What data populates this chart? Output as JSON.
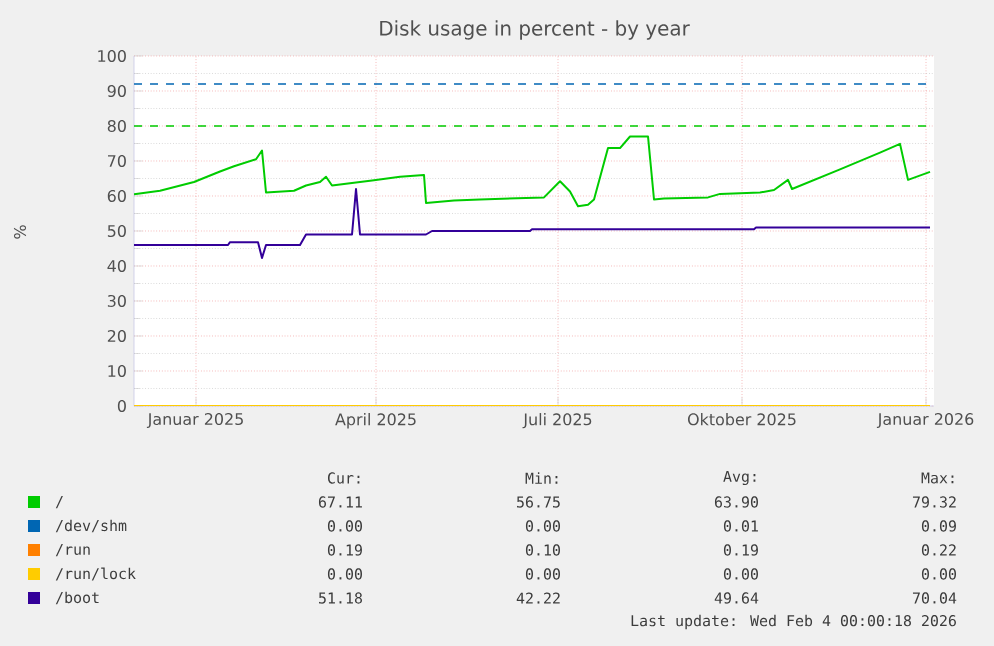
{
  "chart_data": {
    "type": "line",
    "title": "Disk usage in percent - by year",
    "ylabel": "%",
    "xlim": [
      "2024-12-01",
      "2026-01-05"
    ],
    "xticks": [
      {
        "value": "2025-01-01",
        "label": "Januar 2025"
      },
      {
        "value": "2025-04-01",
        "label": "April 2025"
      },
      {
        "value": "2025-07-01",
        "label": "Juli 2025"
      },
      {
        "value": "2025-10-01",
        "label": "Oktober 2025"
      },
      {
        "value": "2026-01-01",
        "label": "Januar 2026"
      }
    ],
    "ylim": [
      0,
      100
    ],
    "yticks": [
      0,
      10,
      20,
      30,
      40,
      50,
      60,
      70,
      80,
      90,
      100
    ],
    "grid": true,
    "legend": "bottom",
    "marker": "none",
    "line_style": "solid",
    "ref_lines": [
      {
        "axis": "y",
        "value": 92,
        "color": "#0066b3",
        "line_style": "dashed"
      },
      {
        "axis": "y",
        "value": 80,
        "color": "#00cc00",
        "line_style": "dashed"
      }
    ],
    "series": [
      {
        "name": "/",
        "color": "#00cc00",
        "x": [
          "2024-12-01",
          "2024-12-14",
          "2024-12-31",
          "2025-01-13",
          "2025-01-20",
          "2025-01-31",
          "2025-02-03",
          "2025-02-05",
          "2025-02-19",
          "2025-02-25",
          "2025-03-04",
          "2025-03-07",
          "2025-03-10",
          "2025-03-17",
          "2025-03-31",
          "2025-04-13",
          "2025-04-25",
          "2025-04-26",
          "2025-05-10",
          "2025-05-23",
          "2025-06-24",
          "2025-07-02",
          "2025-07-07",
          "2025-07-11",
          "2025-07-16",
          "2025-07-19",
          "2025-07-26",
          "2025-08-01",
          "2025-08-06",
          "2025-08-15",
          "2025-08-18",
          "2025-08-23",
          "2025-09-14",
          "2025-09-20",
          "2025-10-10",
          "2025-10-17",
          "2025-10-24",
          "2025-10-26",
          "2025-11-19",
          "2025-12-09",
          "2025-12-19",
          "2025-12-23",
          "2026-01-03"
        ],
        "values": [
          60.5,
          61.5,
          64,
          67,
          68.5,
          70.5,
          73,
          61,
          61.5,
          63,
          64,
          65.5,
          63,
          63.5,
          64.5,
          65.5,
          66,
          58,
          58.7,
          59,
          59.6,
          64.2,
          61.3,
          57.1,
          57.5,
          59,
          73.7,
          73.7,
          77,
          77,
          59,
          59.3,
          59.6,
          60.6,
          61,
          61.7,
          64.6,
          62,
          67.6,
          72.4,
          74.9,
          64.6,
          66.9
        ]
      },
      {
        "name": "/dev/shm",
        "color": "#0066b3"
      },
      {
        "name": "/run",
        "color": "#ff8000"
      },
      {
        "name": "/run/lock",
        "color": "#ffcc00",
        "x": [
          "2024-12-01",
          "2026-01-03"
        ],
        "values": [
          0,
          0
        ]
      },
      {
        "name": "/boot",
        "color": "#330099",
        "x": [
          "2024-12-01",
          "2025-01-17",
          "2025-01-18",
          "2025-02-01",
          "2025-02-03",
          "2025-02-05",
          "2025-02-22",
          "2025-02-25",
          "2025-03-20",
          "2025-03-22",
          "2025-03-24",
          "2025-04-26",
          "2025-04-29",
          "2025-06-17",
          "2025-06-18",
          "2025-10-07",
          "2025-10-08",
          "2026-01-03"
        ],
        "values": [
          46,
          46,
          46.8,
          46.8,
          42.3,
          46,
          46,
          49,
          49,
          62,
          49,
          49,
          50,
          50,
          50.5,
          50.5,
          51,
          51
        ]
      }
    ],
    "annotations": [
      "Cur:",
      "Min:",
      "Avg:",
      "Max:",
      "67.11",
      "56.75",
      "63.90",
      "79.32",
      "0.00",
      "0.00",
      "0.01",
      "0.09",
      "0.19",
      "0.10",
      "0.19",
      "0.22",
      "0.00",
      "0.00",
      "0.00",
      "0.00",
      "51.18",
      "42.22",
      "49.64",
      "70.04",
      "Last update: Wed Feb  4 00:00:18 2026"
    ]
  }
}
